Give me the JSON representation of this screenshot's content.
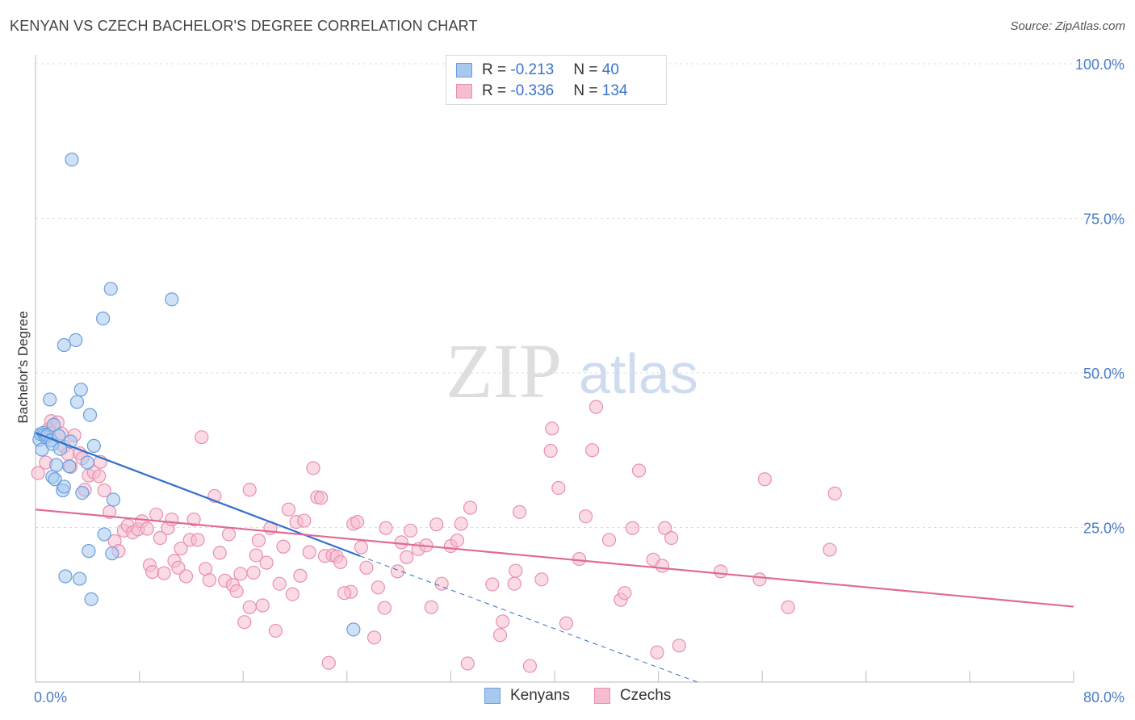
{
  "header": {
    "title": "KENYAN VS CZECH BACHELOR'S DEGREE CORRELATION CHART",
    "source": "Source: ZipAtlas.com"
  },
  "watermark": {
    "zip": "ZIP",
    "atlas": "atlas"
  },
  "legend_top": {
    "rows": [
      {
        "r_label": "R = ",
        "r_value": "-0.213",
        "n_label": "N = ",
        "n_value": "40",
        "color": "#a8c8ee",
        "border": "#6b9edc"
      },
      {
        "r_label": "R = ",
        "r_value": "-0.336",
        "n_label": "N = ",
        "n_value": "134",
        "color": "#f6bcd0",
        "border": "#e890ae"
      }
    ]
  },
  "legend_bottom": [
    {
      "label": "Kenyans",
      "color": "#a8c8ee",
      "border": "#6b9edc"
    },
    {
      "label": "Czechs",
      "color": "#f6bcd0",
      "border": "#e890ae"
    }
  ],
  "chart_data": {
    "type": "scatter",
    "title": "KENYAN VS CZECH BACHELOR'S DEGREE CORRELATION CHART",
    "xlabel": "",
    "ylabel": "Bachelor's Degree",
    "xlim": [
      0,
      80
    ],
    "ylim": [
      0,
      100
    ],
    "x_tick_labels": [
      "0.0%",
      "80.0%"
    ],
    "y_ticks": [
      25,
      50,
      75,
      100
    ],
    "y_tick_labels": [
      "25.0%",
      "50.0%",
      "75.0%",
      "100.0%"
    ],
    "grid": true,
    "legend_position": "top-center",
    "series": [
      {
        "name": "Kenyans",
        "color": "#6b9edc",
        "fill": "#a8c8ee",
        "line_color": "#2f6fce",
        "trend": {
          "x0": 0,
          "y0": 40.3,
          "x1": 25,
          "y1": 20.4,
          "dashed_to_x": 51,
          "dashed_to_y": 0
        },
        "points": [
          [
            0.3,
            39.2
          ],
          [
            0.4,
            40.1
          ],
          [
            0.5,
            37.6
          ],
          [
            0.6,
            40.3
          ],
          [
            0.7,
            40.0
          ],
          [
            0.8,
            39.6
          ],
          [
            0.9,
            39.9
          ],
          [
            1.1,
            45.7
          ],
          [
            1.2,
            39.1
          ],
          [
            1.3,
            38.5
          ],
          [
            1.3,
            33.2
          ],
          [
            1.4,
            41.6
          ],
          [
            1.5,
            32.8
          ],
          [
            1.6,
            35.1
          ],
          [
            1.8,
            39.8
          ],
          [
            1.9,
            37.7
          ],
          [
            2.1,
            31.0
          ],
          [
            2.2,
            54.5
          ],
          [
            2.2,
            31.6
          ],
          [
            2.3,
            17.1
          ],
          [
            2.6,
            34.9
          ],
          [
            2.7,
            38.9
          ],
          [
            2.8,
            84.5
          ],
          [
            3.1,
            55.3
          ],
          [
            3.2,
            45.3
          ],
          [
            3.4,
            16.7
          ],
          [
            3.5,
            47.3
          ],
          [
            3.6,
            30.6
          ],
          [
            4.1,
            21.2
          ],
          [
            4.2,
            43.2
          ],
          [
            4.3,
            13.4
          ],
          [
            4.5,
            38.2
          ],
          [
            5.2,
            58.8
          ],
          [
            5.3,
            23.9
          ],
          [
            5.8,
            63.6
          ],
          [
            5.9,
            20.8
          ],
          [
            6.0,
            29.5
          ],
          [
            10.5,
            61.9
          ],
          [
            24.5,
            8.5
          ],
          [
            4.0,
            35.5
          ]
        ]
      },
      {
        "name": "Czechs",
        "color": "#e890ae",
        "fill": "#f6bcd0",
        "line_color": "#e06a94",
        "trend": {
          "x0": 0,
          "y0": 27.9,
          "x1": 80,
          "y1": 12.2
        },
        "points": [
          [
            0.2,
            33.8
          ],
          [
            1.0,
            40.9
          ],
          [
            1.2,
            42.2
          ],
          [
            1.7,
            42.0
          ],
          [
            2.2,
            38.1
          ],
          [
            2.5,
            36.9
          ],
          [
            2.7,
            34.8
          ],
          [
            3.0,
            39.9
          ],
          [
            3.4,
            37.0
          ],
          [
            3.8,
            31.1
          ],
          [
            4.1,
            33.4
          ],
          [
            4.5,
            33.9
          ],
          [
            4.9,
            33.3
          ],
          [
            5.3,
            31.0
          ],
          [
            5.7,
            27.5
          ],
          [
            6.1,
            22.8
          ],
          [
            6.4,
            21.2
          ],
          [
            6.8,
            24.5
          ],
          [
            7.1,
            25.3
          ],
          [
            7.5,
            24.2
          ],
          [
            7.9,
            24.7
          ],
          [
            8.2,
            26.0
          ],
          [
            8.6,
            24.8
          ],
          [
            8.8,
            18.9
          ],
          [
            9.0,
            17.8
          ],
          [
            9.3,
            27.1
          ],
          [
            9.6,
            23.3
          ],
          [
            9.9,
            17.6
          ],
          [
            10.2,
            24.9
          ],
          [
            10.5,
            26.3
          ],
          [
            10.7,
            19.6
          ],
          [
            11.0,
            18.5
          ],
          [
            11.2,
            21.6
          ],
          [
            11.6,
            17.1
          ],
          [
            11.9,
            23.0
          ],
          [
            12.2,
            26.3
          ],
          [
            12.5,
            23.0
          ],
          [
            12.8,
            39.6
          ],
          [
            13.1,
            18.3
          ],
          [
            13.4,
            16.5
          ],
          [
            13.8,
            30.1
          ],
          [
            14.2,
            20.9
          ],
          [
            14.6,
            16.4
          ],
          [
            14.9,
            23.9
          ],
          [
            15.2,
            15.7
          ],
          [
            15.5,
            14.7
          ],
          [
            15.8,
            17.5
          ],
          [
            16.1,
            9.7
          ],
          [
            16.5,
            31.1
          ],
          [
            16.8,
            17.7
          ],
          [
            17.2,
            22.9
          ],
          [
            17.5,
            12.4
          ],
          [
            17.8,
            19.3
          ],
          [
            18.1,
            24.9
          ],
          [
            18.5,
            8.3
          ],
          [
            18.8,
            15.9
          ],
          [
            19.1,
            21.9
          ],
          [
            19.5,
            27.9
          ],
          [
            19.8,
            14.2
          ],
          [
            20.1,
            25.9
          ],
          [
            20.4,
            17.2
          ],
          [
            20.7,
            26.1
          ],
          [
            21.1,
            21.0
          ],
          [
            21.4,
            34.6
          ],
          [
            21.7,
            29.9
          ],
          [
            22.0,
            29.8
          ],
          [
            22.3,
            20.4
          ],
          [
            22.6,
            3.1
          ],
          [
            22.9,
            20.5
          ],
          [
            23.2,
            20.3
          ],
          [
            23.5,
            19.4
          ],
          [
            24.3,
            14.6
          ],
          [
            24.5,
            25.6
          ],
          [
            24.8,
            25.9
          ],
          [
            25.1,
            21.8
          ],
          [
            25.5,
            18.5
          ],
          [
            26.1,
            7.2
          ],
          [
            26.4,
            15.3
          ],
          [
            27.0,
            24.9
          ],
          [
            27.9,
            17.9
          ],
          [
            28.2,
            22.6
          ],
          [
            28.6,
            20.2
          ],
          [
            28.9,
            24.5
          ],
          [
            29.5,
            21.5
          ],
          [
            30.1,
            22.1
          ],
          [
            30.5,
            12.1
          ],
          [
            30.9,
            25.5
          ],
          [
            31.3,
            15.9
          ],
          [
            32.0,
            22.0
          ],
          [
            32.5,
            22.9
          ],
          [
            32.8,
            25.6
          ],
          [
            33.3,
            3.0
          ],
          [
            33.5,
            28.2
          ],
          [
            35.2,
            15.8
          ],
          [
            36.0,
            9.8
          ],
          [
            35.8,
            7.6
          ],
          [
            36.9,
            15.9
          ],
          [
            37.3,
            27.5
          ],
          [
            38.1,
            2.6
          ],
          [
            39.0,
            16.6
          ],
          [
            39.8,
            41.0
          ],
          [
            39.7,
            37.4
          ],
          [
            40.3,
            31.4
          ],
          [
            40.9,
            9.5
          ],
          [
            41.9,
            19.9
          ],
          [
            42.4,
            26.8
          ],
          [
            42.9,
            37.5
          ],
          [
            43.2,
            44.5
          ],
          [
            44.2,
            23.0
          ],
          [
            45.1,
            13.3
          ],
          [
            45.4,
            14.4
          ],
          [
            46.0,
            24.9
          ],
          [
            46.5,
            34.2
          ],
          [
            47.6,
            19.8
          ],
          [
            47.9,
            4.8
          ],
          [
            48.3,
            18.8
          ],
          [
            48.5,
            24.9
          ],
          [
            49.0,
            23.3
          ],
          [
            49.6,
            5.9
          ],
          [
            52.8,
            17.9
          ],
          [
            55.8,
            16.6
          ],
          [
            56.2,
            32.8
          ],
          [
            58.0,
            12.1
          ],
          [
            61.2,
            21.4
          ],
          [
            61.6,
            30.5
          ],
          [
            37.0,
            18.0
          ],
          [
            17.0,
            20.5
          ],
          [
            23.8,
            14.4
          ],
          [
            26.9,
            12.0
          ],
          [
            16.5,
            12.1
          ],
          [
            0.8,
            35.5
          ],
          [
            2.0,
            40.2
          ],
          [
            3.6,
            36.2
          ],
          [
            5.0,
            35.6
          ]
        ]
      }
    ]
  }
}
